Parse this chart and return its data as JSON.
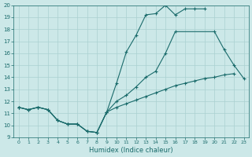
{
  "xlabel": "Humidex (Indice chaleur)",
  "background_color": "#cce8e8",
  "line_color": "#1a6b6b",
  "grid_color": "#aad0d0",
  "xlim_min": -0.5,
  "xlim_max": 23.5,
  "ylim_min": 9,
  "ylim_max": 20,
  "xticks": [
    0,
    1,
    2,
    3,
    4,
    5,
    6,
    7,
    8,
    9,
    10,
    11,
    12,
    13,
    14,
    15,
    16,
    17,
    18,
    19,
    20,
    21,
    22,
    23
  ],
  "yticks": [
    9,
    10,
    11,
    12,
    13,
    14,
    15,
    16,
    17,
    18,
    19,
    20
  ],
  "line1_x": [
    0,
    1,
    2,
    3,
    4,
    5,
    6,
    7,
    8,
    9,
    10,
    11,
    12,
    13,
    14,
    15,
    16,
    17,
    18,
    19
  ],
  "line1_y": [
    11.5,
    11.3,
    11.5,
    11.3,
    10.4,
    10.1,
    10.1,
    9.5,
    9.4,
    11.1,
    13.5,
    16.1,
    17.5,
    19.2,
    19.3,
    20.0,
    19.2,
    19.7,
    19.7,
    19.7
  ],
  "line2_x": [
    0,
    1,
    2,
    3,
    4,
    5,
    6,
    7,
    8,
    9,
    10,
    11,
    12,
    13,
    14,
    15,
    16,
    17,
    18,
    19,
    20,
    21,
    22
  ],
  "line2_y": [
    11.5,
    11.3,
    11.5,
    11.3,
    10.4,
    10.1,
    10.1,
    9.5,
    9.4,
    11.1,
    11.5,
    11.8,
    12.1,
    12.4,
    12.7,
    13.0,
    13.3,
    13.5,
    13.7,
    13.9,
    14.0,
    14.2,
    14.3
  ],
  "line3_x": [
    0,
    1,
    2,
    3,
    4,
    5,
    6,
    7,
    8,
    9,
    10,
    11,
    12,
    13,
    14,
    15,
    16,
    20,
    21,
    22,
    23
  ],
  "line3_y": [
    11.5,
    11.3,
    11.5,
    11.3,
    10.4,
    10.1,
    10.1,
    9.5,
    9.4,
    11.1,
    12.0,
    12.5,
    13.2,
    14.0,
    14.5,
    16.0,
    17.8,
    17.8,
    16.3,
    15.0,
    13.9
  ]
}
